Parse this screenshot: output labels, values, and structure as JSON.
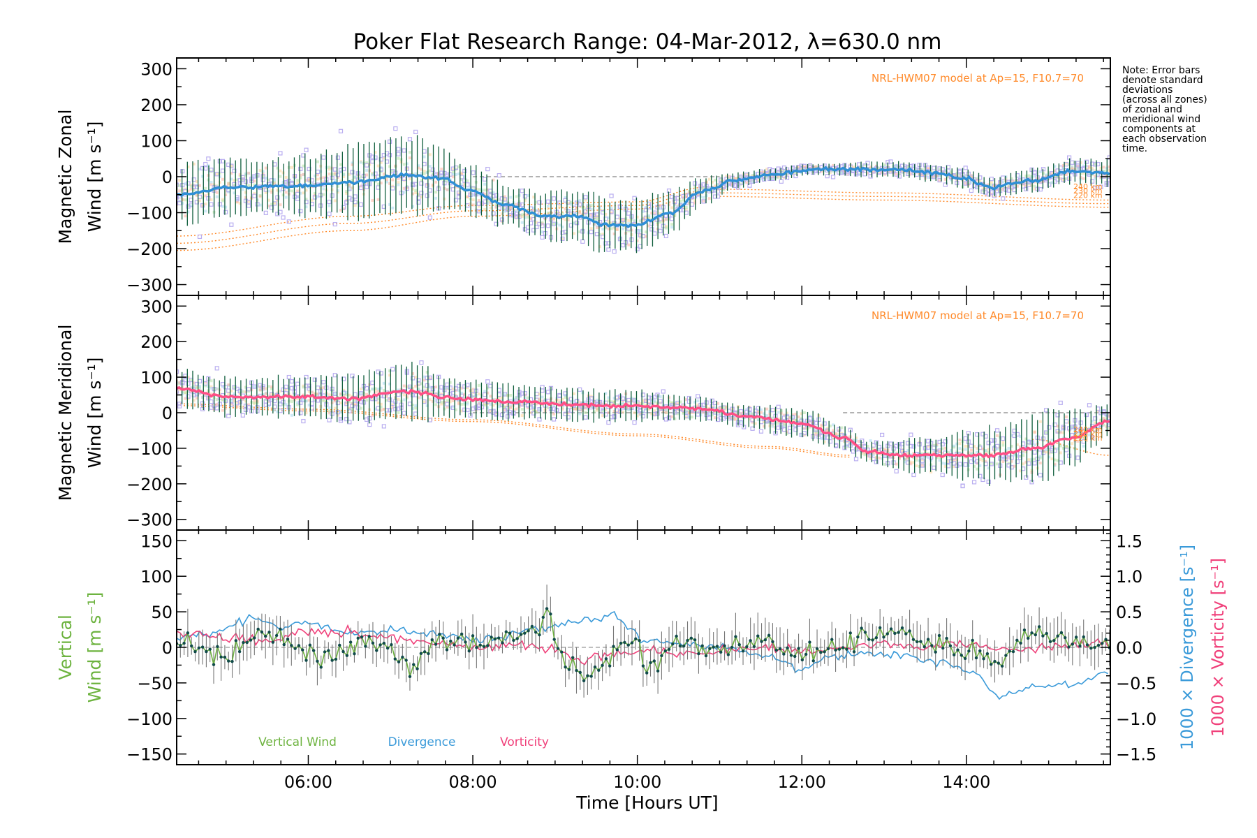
{
  "title": "Poker Flat Research Range: 04-Mar-2012, λ=630.0 nm",
  "note_lines": [
    "Note: Error bars",
    "denote standard",
    "deviations",
    "(across all zones)",
    "of zonal and",
    "meridional wind",
    "components at",
    "each observation",
    "time."
  ],
  "colors": {
    "axes": "#000000",
    "zonal_mean": "#2f8fd6",
    "meridional_mean": "#ff4f86",
    "error_bar": "#0f5e3c",
    "scatter": "#b9aef0",
    "model": "#ff8a2a",
    "vertical": "#6db33f",
    "divergence": "#3a9ad9",
    "vorticity": "#f0407a",
    "vertical_points": "#114a4a",
    "vertical_err": "#777777",
    "zero_line": "#999999"
  },
  "chart_data": [
    {
      "type": "line",
      "panel": "zonal",
      "ylabel_line1": "Magnetic Zonal",
      "ylabel_line2": "Wind [m s⁻¹]",
      "ylim": [
        -330,
        330
      ],
      "yticks": [
        -300,
        -200,
        -100,
        0,
        100,
        200,
        300
      ],
      "ytick_labels": [
        "−300",
        "−200",
        "−100",
        "0",
        "100",
        "200",
        "300"
      ],
      "xlim": [
        4.4,
        15.75
      ],
      "annotation": "NRL-HWM07 model at Ap=15, F10.7=70",
      "model_level_labels": [
        "240 km",
        "230 km",
        "220 km"
      ],
      "mean_knots": [
        [
          4.4,
          -50
        ],
        [
          5.0,
          -30
        ],
        [
          6.0,
          -25
        ],
        [
          6.5,
          -15
        ],
        [
          7.2,
          5
        ],
        [
          7.6,
          -5
        ],
        [
          8.0,
          -40
        ],
        [
          8.4,
          -80
        ],
        [
          8.9,
          -110
        ],
        [
          9.3,
          -110
        ],
        [
          9.6,
          -135
        ],
        [
          10.0,
          -135
        ],
        [
          10.4,
          -100
        ],
        [
          10.8,
          -40
        ],
        [
          11.2,
          -10
        ],
        [
          11.6,
          5
        ],
        [
          12.1,
          20
        ],
        [
          12.6,
          20
        ],
        [
          13.2,
          20
        ],
        [
          13.6,
          10
        ],
        [
          14.0,
          -5
        ],
        [
          14.3,
          -30
        ],
        [
          14.8,
          -10
        ],
        [
          15.3,
          15
        ],
        [
          15.75,
          10
        ]
      ],
      "errbar_halfwidth_knots": [
        [
          4.4,
          80
        ],
        [
          5.5,
          70
        ],
        [
          6.5,
          95
        ],
        [
          7.2,
          105
        ],
        [
          7.8,
          70
        ],
        [
          8.5,
          55
        ],
        [
          9.5,
          75
        ],
        [
          10.2,
          70
        ],
        [
          10.8,
          40
        ],
        [
          11.2,
          20
        ],
        [
          12.0,
          15
        ],
        [
          13.0,
          20
        ],
        [
          14.0,
          25
        ],
        [
          14.5,
          30
        ],
        [
          15.75,
          35
        ]
      ],
      "model_curves": [
        [
          [
            4.4,
            -165
          ],
          [
            6.5,
            -110
          ],
          [
            8.0,
            -80
          ],
          [
            10.0,
            -70
          ],
          [
            10.8,
            -30
          ]
        ],
        [
          [
            4.4,
            -185
          ],
          [
            6.5,
            -130
          ],
          [
            8.0,
            -95
          ],
          [
            10.0,
            -80
          ],
          [
            10.8,
            -40
          ]
        ],
        [
          [
            4.4,
            -205
          ],
          [
            6.5,
            -150
          ],
          [
            8.0,
            -110
          ],
          [
            10.0,
            -90
          ],
          [
            10.8,
            -50
          ]
        ],
        [
          [
            11.0,
            -35
          ],
          [
            13.0,
            -45
          ],
          [
            15.75,
            -65
          ]
        ],
        [
          [
            11.0,
            -45
          ],
          [
            13.0,
            -55
          ],
          [
            15.75,
            -75
          ]
        ],
        [
          [
            11.0,
            -55
          ],
          [
            13.0,
            -65
          ],
          [
            15.75,
            -85
          ]
        ]
      ]
    },
    {
      "type": "line",
      "panel": "meridional",
      "ylabel_line1": "Magnetic Meridional",
      "ylabel_line2": "Wind [m s⁻¹]",
      "ylim": [
        -330,
        330
      ],
      "yticks": [
        -300,
        -200,
        -100,
        0,
        100,
        200,
        300
      ],
      "ytick_labels": [
        "−300",
        "−200",
        "−100",
        "0",
        "100",
        "200",
        "300"
      ],
      "xlim": [
        4.4,
        15.75
      ],
      "annotation": "NRL-HWM07 model at Ap=15, F10.7=70",
      "model_level_labels": [
        "240 km",
        "230 km",
        "220 km"
      ],
      "mean_knots": [
        [
          4.4,
          70
        ],
        [
          5.0,
          45
        ],
        [
          6.0,
          45
        ],
        [
          6.5,
          40
        ],
        [
          7.2,
          60
        ],
        [
          7.8,
          40
        ],
        [
          8.5,
          30
        ],
        [
          9.5,
          20
        ],
        [
          10.0,
          20
        ],
        [
          10.4,
          15
        ],
        [
          10.8,
          10
        ],
        [
          11.3,
          -10
        ],
        [
          12.0,
          -30
        ],
        [
          12.5,
          -70
        ],
        [
          12.8,
          -110
        ],
        [
          13.2,
          -120
        ],
        [
          13.8,
          -120
        ],
        [
          14.3,
          -120
        ],
        [
          14.8,
          -100
        ],
        [
          15.3,
          -70
        ],
        [
          15.75,
          -20
        ]
      ],
      "errbar_halfwidth_knots": [
        [
          4.4,
          50
        ],
        [
          6.0,
          55
        ],
        [
          7.2,
          75
        ],
        [
          8.0,
          50
        ],
        [
          9.0,
          45
        ],
        [
          10.0,
          40
        ],
        [
          11.0,
          30
        ],
        [
          12.0,
          40
        ],
        [
          12.8,
          30
        ],
        [
          13.5,
          50
        ],
        [
          14.3,
          75
        ],
        [
          15.0,
          90
        ],
        [
          15.75,
          45
        ]
      ],
      "model_curves": [
        [
          [
            4.4,
            25
          ],
          [
            6.0,
            10
          ],
          [
            8.0,
            -20
          ],
          [
            10.0,
            -60
          ],
          [
            11.6,
            -95
          ],
          [
            12.6,
            -120
          ]
        ],
        [
          [
            4.4,
            20
          ],
          [
            6.0,
            5
          ],
          [
            8.0,
            -25
          ],
          [
            10.0,
            -65
          ],
          [
            11.6,
            -100
          ],
          [
            12.6,
            -125
          ]
        ],
        [
          [
            14.8,
            -75
          ],
          [
            15.75,
            -120
          ]
        ]
      ]
    },
    {
      "type": "line",
      "panel": "vertical",
      "ylabel_line1": "Vertical",
      "ylabel_line2": "Wind [m s⁻¹]",
      "right_label_1": "1000 × Divergence [s⁻¹]",
      "right_label_2": "1000 × Vorticity [s⁻¹]",
      "ylim": [
        -165,
        165
      ],
      "yticks": [
        -150,
        -100,
        -50,
        0,
        50,
        100,
        150
      ],
      "ytick_labels": [
        "−150",
        "−100",
        "−50",
        "0",
        "50",
        "100",
        "150"
      ],
      "y2lim": [
        -1.65,
        1.65
      ],
      "y2ticks": [
        -1.5,
        -1.0,
        -0.5,
        0.0,
        0.5,
        1.0,
        1.5
      ],
      "y2tick_labels": [
        "−1.5",
        "−1.0",
        "−0.5",
        "0.0",
        "0.5",
        "1.0",
        "1.5"
      ],
      "xlim": [
        4.4,
        15.75
      ],
      "xticks": [
        6,
        8,
        10,
        12,
        14
      ],
      "xtick_labels": [
        "06:00",
        "08:00",
        "10:00",
        "12:00",
        "14:00"
      ],
      "xlabel": "Time [Hours UT]",
      "legend": [
        "Vertical Wind",
        "Divergence",
        "Vorticity"
      ],
      "vertical_knots": [
        [
          4.4,
          10
        ],
        [
          4.7,
          -5
        ],
        [
          5.0,
          -15
        ],
        [
          5.4,
          25
        ],
        [
          5.8,
          5
        ],
        [
          6.2,
          -20
        ],
        [
          6.6,
          10
        ],
        [
          7.0,
          0
        ],
        [
          7.2,
          -30
        ],
        [
          7.6,
          10
        ],
        [
          8.0,
          0
        ],
        [
          8.4,
          15
        ],
        [
          8.8,
          30
        ],
        [
          8.9,
          55
        ],
        [
          9.1,
          -15
        ],
        [
          9.4,
          -45
        ],
        [
          9.8,
          0
        ],
        [
          10.0,
          15
        ],
        [
          10.1,
          -30
        ],
        [
          10.5,
          10
        ],
        [
          11.0,
          -5
        ],
        [
          11.5,
          10
        ],
        [
          12.0,
          -10
        ],
        [
          12.5,
          5
        ],
        [
          13.0,
          20
        ],
        [
          13.2,
          25
        ],
        [
          13.6,
          5
        ],
        [
          14.0,
          -5
        ],
        [
          14.4,
          -20
        ],
        [
          14.8,
          20
        ],
        [
          15.2,
          10
        ],
        [
          15.75,
          0
        ]
      ],
      "divergence_knots": [
        [
          4.4,
          0.15
        ],
        [
          4.9,
          0.2
        ],
        [
          5.3,
          0.4
        ],
        [
          5.6,
          0.3
        ],
        [
          6.0,
          0.35
        ],
        [
          6.5,
          0.2
        ],
        [
          7.0,
          0.25
        ],
        [
          7.4,
          0.2
        ],
        [
          7.8,
          0.15
        ],
        [
          8.1,
          0.1
        ],
        [
          8.5,
          0.2
        ],
        [
          9.0,
          0.3
        ],
        [
          9.5,
          0.4
        ],
        [
          9.7,
          0.45
        ],
        [
          9.8,
          0.35
        ],
        [
          10.1,
          0.1
        ],
        [
          10.6,
          0.05
        ],
        [
          11.0,
          0.0
        ],
        [
          11.5,
          -0.1
        ],
        [
          12.0,
          -0.3
        ],
        [
          12.3,
          -0.15
        ],
        [
          12.8,
          -0.1
        ],
        [
          13.2,
          -0.1
        ],
        [
          13.7,
          -0.2
        ],
        [
          14.1,
          -0.35
        ],
        [
          14.4,
          -0.7
        ],
        [
          14.8,
          -0.55
        ],
        [
          15.3,
          -0.5
        ],
        [
          15.75,
          -0.35
        ]
      ],
      "vorticity_knots": [
        [
          4.4,
          0.2
        ],
        [
          5.0,
          0.15
        ],
        [
          5.5,
          0.1
        ],
        [
          6.0,
          0.25
        ],
        [
          6.5,
          0.2
        ],
        [
          7.0,
          0.15
        ],
        [
          7.5,
          0.05
        ],
        [
          8.0,
          0.0
        ],
        [
          8.5,
          0.05
        ],
        [
          8.9,
          0.0
        ],
        [
          9.3,
          -0.15
        ],
        [
          9.7,
          -0.1
        ],
        [
          10.0,
          -0.05
        ],
        [
          10.5,
          -0.1
        ],
        [
          11.0,
          -0.05
        ],
        [
          11.5,
          0.0
        ],
        [
          12.0,
          -0.05
        ],
        [
          12.5,
          0.0
        ],
        [
          13.0,
          0.05
        ],
        [
          13.5,
          0.0
        ],
        [
          14.0,
          0.05
        ],
        [
          14.5,
          -0.05
        ],
        [
          15.0,
          0.0
        ],
        [
          15.75,
          0.05
        ]
      ]
    }
  ]
}
